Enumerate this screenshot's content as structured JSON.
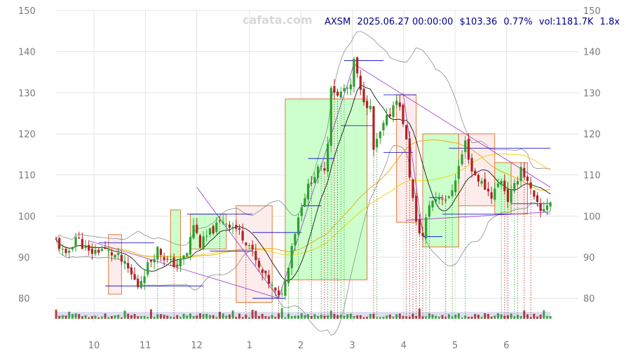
{
  "watermark": "cafata.com",
  "info": {
    "ticker": "AXSM",
    "datetime": "2025.06.27 00:00:00",
    "price": "$103.36",
    "change": "0.77%",
    "volume": "vol:1181.7K",
    "multiple": "1.8x"
  },
  "chart_data": {
    "type": "candlestick",
    "title": "AXSM 2025.06.27 00:00:00 $103.36 0.77% vol:1181.7K 1.8x",
    "ylim": [
      75,
      150
    ],
    "y_ticks": [
      80,
      90,
      100,
      110,
      120,
      130,
      140,
      150
    ],
    "x_ticks": [
      "10",
      "11",
      "12",
      "1",
      "2",
      "3",
      "4",
      "5",
      "6"
    ],
    "grid": true,
    "colors": {
      "up": "#2ca02c",
      "down": "#b22222",
      "up_box_fill": "#ccffcc",
      "down_box_fill": "#fdecec",
      "box_border": "#e07b39",
      "trend_line": "#9932cc",
      "level_line": "#0000cd",
      "ma_fast": "#000000",
      "ma_mid": "#f0a500",
      "ma_slow": "#f5d000",
      "bollinger": "#8c8c8c"
    },
    "price_path": [
      [
        0,
        94
      ],
      [
        3,
        90
      ],
      [
        6,
        95
      ],
      [
        10,
        91
      ],
      [
        14,
        92
      ],
      [
        19,
        90
      ],
      [
        22,
        87
      ],
      [
        25,
        83
      ],
      [
        28,
        88
      ],
      [
        31,
        92
      ],
      [
        34,
        89
      ],
      [
        37,
        88
      ],
      [
        40,
        91
      ],
      [
        42,
        98
      ],
      [
        44,
        93
      ],
      [
        47,
        96
      ],
      [
        51,
        99
      ],
      [
        55,
        97
      ],
      [
        59,
        93
      ],
      [
        62,
        87
      ],
      [
        65,
        84
      ],
      [
        68,
        80
      ],
      [
        70,
        84
      ],
      [
        72,
        93
      ],
      [
        75,
        103
      ],
      [
        78,
        109
      ],
      [
        80,
        111
      ],
      [
        82,
        112
      ],
      [
        83,
        118
      ],
      [
        84,
        132
      ],
      [
        86,
        129
      ],
      [
        88,
        131
      ],
      [
        90,
        131
      ],
      [
        91,
        138
      ],
      [
        93,
        130
      ],
      [
        96,
        126
      ],
      [
        97,
        116
      ],
      [
        100,
        122
      ],
      [
        102,
        125
      ],
      [
        104,
        129
      ],
      [
        106,
        123
      ],
      [
        107,
        118
      ],
      [
        108,
        110
      ],
      [
        109,
        104
      ],
      [
        110,
        98
      ],
      [
        112,
        95
      ],
      [
        114,
        103
      ],
      [
        117,
        105
      ],
      [
        120,
        104
      ],
      [
        123,
        112
      ],
      [
        125,
        118
      ],
      [
        127,
        111
      ],
      [
        130,
        108
      ],
      [
        133,
        105
      ],
      [
        136,
        109
      ],
      [
        138,
        104
      ],
      [
        140,
        107
      ],
      [
        142,
        112
      ],
      [
        144,
        108
      ],
      [
        146,
        104
      ],
      [
        148,
        101
      ],
      [
        150,
        103
      ],
      [
        151,
        103.4
      ]
    ],
    "zones": [
      {
        "kind": "down",
        "d0": 16,
        "d1": 20,
        "top": 95.5,
        "bottom": 81
      },
      {
        "kind": "up",
        "d0": 35,
        "d1": 38,
        "top": 101.5,
        "bottom": 88
      },
      {
        "kind": "up",
        "d0": 41,
        "d1": 52,
        "top": 100.5,
        "bottom": 92
      },
      {
        "kind": "down",
        "d0": 55,
        "d1": 66,
        "top": 102.5,
        "bottom": 79
      },
      {
        "kind": "up",
        "d0": 70,
        "d1": 95,
        "top": 128.5,
        "bottom": 84.5
      },
      {
        "kind": "down",
        "d0": 104,
        "d1": 110,
        "top": 129.5,
        "bottom": 98.5
      },
      {
        "kind": "up",
        "d0": 112,
        "d1": 123,
        "top": 120,
        "bottom": 92.5
      },
      {
        "kind": "down",
        "d0": 123,
        "d1": 134,
        "top": 120,
        "bottom": 102.5
      },
      {
        "kind": "up",
        "d0": 134,
        "d1": 139,
        "top": 113,
        "bottom": 100.5
      },
      {
        "kind": "down",
        "d0": 139,
        "d1": 144,
        "top": 113,
        "bottom": 100.5
      }
    ],
    "trend_lines": [
      [
        [
          10,
          94
        ],
        [
          68,
          80
        ]
      ],
      [
        [
          68,
          80
        ],
        [
          91,
          137
        ]
      ],
      [
        [
          91,
          137
        ],
        [
          151,
          107
        ]
      ],
      [
        [
          68,
          80
        ],
        [
          43,
          107
        ]
      ],
      [
        [
          107,
          99
        ],
        [
          151,
          101
        ]
      ],
      [
        [
          106,
          130
        ],
        [
          112,
          96
        ]
      ]
    ],
    "levels": [
      {
        "d0": 13,
        "d1": 30,
        "y": 93.5
      },
      {
        "d0": 15,
        "d1": 45,
        "y": 83
      },
      {
        "d0": 40,
        "d1": 60,
        "y": 100.5
      },
      {
        "d0": 47,
        "d1": 60,
        "y": 91.5
      },
      {
        "d0": 60,
        "d1": 75,
        "y": 96
      },
      {
        "d0": 60,
        "d1": 70,
        "y": 80
      },
      {
        "d0": 75,
        "d1": 81,
        "y": 102.5
      },
      {
        "d0": 77,
        "d1": 85,
        "y": 114
      },
      {
        "d0": 88,
        "d1": 100,
        "y": 137.8
      },
      {
        "d0": 87,
        "d1": 97,
        "y": 122
      },
      {
        "d0": 100,
        "d1": 110,
        "y": 129.5
      },
      {
        "d0": 100,
        "d1": 109,
        "y": 115.5
      },
      {
        "d0": 112,
        "d1": 118,
        "y": 95
      },
      {
        "d0": 114,
        "d1": 118,
        "y": 104.5
      },
      {
        "d0": 118,
        "d1": 140,
        "y": 100.5
      },
      {
        "d0": 120,
        "d1": 151,
        "y": 116.5
      },
      {
        "d0": 139,
        "d1": 151,
        "y": 103
      }
    ],
    "signal_days": [
      31,
      36,
      45,
      50,
      58,
      66,
      68,
      69,
      71,
      74,
      78,
      81,
      82,
      83,
      84,
      85,
      86,
      87,
      88,
      97,
      98,
      107,
      108,
      109,
      110,
      111,
      112,
      113,
      114,
      119,
      121,
      125,
      136,
      137,
      138,
      140,
      141,
      143,
      145
    ]
  }
}
